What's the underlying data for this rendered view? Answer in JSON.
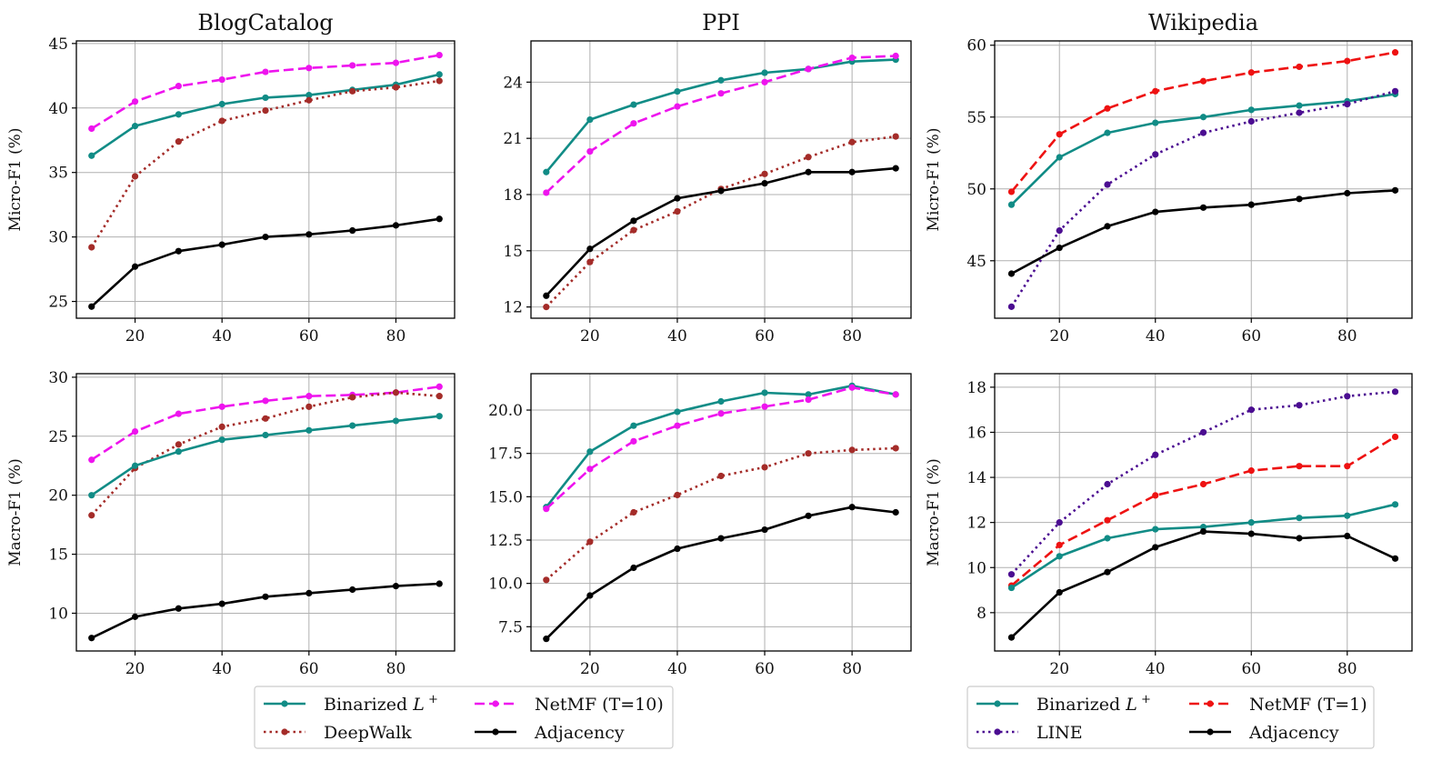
{
  "figure": {
    "legends": [
      {
        "entries": [
          {
            "label": "Binarized L",
            "sup": "+",
            "color": "#118c86",
            "dash": "solid"
          },
          {
            "label": "NetMF (T=10)",
            "color": "#ee14ee",
            "dash": "dashed"
          },
          {
            "label": "DeepWalk",
            "color": "#a42c29",
            "dash": "dotted"
          },
          {
            "label": "Adjacency",
            "color": "#000000",
            "dash": "solid"
          }
        ]
      },
      {
        "entries": [
          {
            "label": "Binarized L",
            "sup": "+",
            "color": "#118c86",
            "dash": "solid"
          },
          {
            "label": "NetMF (T=1)",
            "color": "#ee1212",
            "dash": "dashed"
          },
          {
            "label": "LINE",
            "color": "#4b0d91",
            "dash": "dotted"
          },
          {
            "label": "Adjacency",
            "color": "#000000",
            "dash": "solid"
          }
        ]
      }
    ]
  },
  "chart_data": [
    {
      "type": "line",
      "title": "BlogCatalog",
      "xlabel": "",
      "ylabel": "Micro-F1 (%)",
      "x": [
        10,
        20,
        30,
        40,
        50,
        60,
        70,
        80,
        90
      ],
      "xlim": [
        6.5,
        93.5
      ],
      "ylim": [
        23.7,
        45.2
      ],
      "xticks": [
        20,
        40,
        60,
        80
      ],
      "yticks": [
        25,
        30,
        35,
        40,
        45
      ],
      "grid": true,
      "series": [
        {
          "name": "NetMF (T=10)",
          "color": "#ee14ee",
          "dash": "dashed",
          "values": [
            38.4,
            40.5,
            41.7,
            42.2,
            42.8,
            43.1,
            43.3,
            43.5,
            44.1
          ]
        },
        {
          "name": "Binarized L+",
          "color": "#118c86",
          "dash": "solid",
          "values": [
            36.3,
            38.6,
            39.5,
            40.3,
            40.8,
            41.0,
            41.4,
            41.8,
            42.6
          ]
        },
        {
          "name": "DeepWalk",
          "color": "#a42c29",
          "dash": "dotted",
          "values": [
            29.2,
            34.7,
            37.4,
            39.0,
            39.8,
            40.6,
            41.3,
            41.6,
            42.1
          ]
        },
        {
          "name": "Adjacency",
          "color": "#000000",
          "dash": "solid",
          "values": [
            24.6,
            27.7,
            28.9,
            29.4,
            30.0,
            30.2,
            30.5,
            30.9,
            31.4
          ]
        }
      ]
    },
    {
      "type": "line",
      "title": "PPI",
      "xlabel": "",
      "ylabel": "",
      "x": [
        10,
        20,
        30,
        40,
        50,
        60,
        70,
        80,
        90
      ],
      "xlim": [
        6.5,
        93.5
      ],
      "ylim": [
        11.4,
        26.2
      ],
      "xticks": [
        20,
        40,
        60,
        80
      ],
      "yticks": [
        12,
        15,
        18,
        21,
        24
      ],
      "grid": true,
      "series": [
        {
          "name": "Binarized L+",
          "color": "#118c86",
          "dash": "solid",
          "values": [
            19.2,
            22.0,
            22.8,
            23.5,
            24.1,
            24.5,
            24.7,
            25.1,
            25.2
          ]
        },
        {
          "name": "NetMF (T=10)",
          "color": "#ee14ee",
          "dash": "dashed",
          "values": [
            18.1,
            20.3,
            21.8,
            22.7,
            23.4,
            24.0,
            24.7,
            25.3,
            25.4
          ]
        },
        {
          "name": "DeepWalk",
          "color": "#a42c29",
          "dash": "dotted",
          "values": [
            12.0,
            14.4,
            16.1,
            17.1,
            18.3,
            19.1,
            20.0,
            20.8,
            21.1
          ]
        },
        {
          "name": "Adjacency",
          "color": "#000000",
          "dash": "solid",
          "values": [
            12.6,
            15.1,
            16.6,
            17.8,
            18.2,
            18.6,
            19.2,
            19.2,
            19.4
          ]
        }
      ]
    },
    {
      "type": "line",
      "title": "Wikipedia",
      "xlabel": "",
      "ylabel": "Micro-F1 (%)",
      "x": [
        10,
        20,
        30,
        40,
        50,
        60,
        70,
        80,
        90
      ],
      "xlim": [
        6.5,
        93.5
      ],
      "ylim": [
        41.0,
        60.3
      ],
      "xticks": [
        20,
        40,
        60,
        80
      ],
      "yticks": [
        45,
        50,
        55,
        60
      ],
      "grid": true,
      "series": [
        {
          "name": "NetMF (T=1)",
          "color": "#ee1212",
          "dash": "dashed",
          "values": [
            49.8,
            53.8,
            55.6,
            56.8,
            57.5,
            58.1,
            58.5,
            58.9,
            59.5
          ]
        },
        {
          "name": "Binarized L+",
          "color": "#118c86",
          "dash": "solid",
          "values": [
            48.9,
            52.2,
            53.9,
            54.6,
            55.0,
            55.5,
            55.8,
            56.1,
            56.6
          ]
        },
        {
          "name": "LINE",
          "color": "#4b0d91",
          "dash": "dotted",
          "values": [
            41.8,
            47.1,
            50.3,
            52.4,
            53.9,
            54.7,
            55.3,
            55.9,
            56.8
          ]
        },
        {
          "name": "Adjacency",
          "color": "#000000",
          "dash": "solid",
          "values": [
            44.1,
            45.9,
            47.4,
            48.4,
            48.7,
            48.9,
            49.3,
            49.7,
            49.9
          ]
        }
      ]
    },
    {
      "type": "line",
      "title": "",
      "xlabel": "",
      "ylabel": "Macro-F1 (%)",
      "x": [
        10,
        20,
        30,
        40,
        50,
        60,
        70,
        80,
        90
      ],
      "xlim": [
        6.5,
        93.5
      ],
      "ylim": [
        6.8,
        30.3
      ],
      "xticks": [
        20,
        40,
        60,
        80
      ],
      "yticks": [
        10,
        15,
        20,
        25,
        30
      ],
      "grid": true,
      "series": [
        {
          "name": "NetMF (T=10)",
          "color": "#ee14ee",
          "dash": "dashed",
          "values": [
            23.0,
            25.4,
            26.9,
            27.5,
            28.0,
            28.4,
            28.5,
            28.7,
            29.2
          ]
        },
        {
          "name": "DeepWalk",
          "color": "#a42c29",
          "dash": "dotted",
          "values": [
            18.3,
            22.3,
            24.3,
            25.8,
            26.5,
            27.5,
            28.3,
            28.7,
            28.4
          ]
        },
        {
          "name": "Binarized L+",
          "color": "#118c86",
          "dash": "solid",
          "values": [
            20.0,
            22.5,
            23.7,
            24.7,
            25.1,
            25.5,
            25.9,
            26.3,
            26.7
          ]
        },
        {
          "name": "Adjacency",
          "color": "#000000",
          "dash": "solid",
          "values": [
            7.9,
            9.7,
            10.4,
            10.8,
            11.4,
            11.7,
            12.0,
            12.3,
            12.5
          ]
        }
      ]
    },
    {
      "type": "line",
      "title": "",
      "xlabel": "",
      "ylabel": "",
      "x": [
        10,
        20,
        30,
        40,
        50,
        60,
        70,
        80,
        90
      ],
      "xlim": [
        6.5,
        93.5
      ],
      "ylim": [
        6.1,
        22.1
      ],
      "xticks": [
        20,
        40,
        60,
        80
      ],
      "yticks": [
        7.5,
        10.0,
        12.5,
        15.0,
        17.5,
        20.0
      ],
      "ytick_decimals": 1,
      "grid": true,
      "series": [
        {
          "name": "Binarized L+",
          "color": "#118c86",
          "dash": "solid",
          "values": [
            14.4,
            17.6,
            19.1,
            19.9,
            20.5,
            21.0,
            20.9,
            21.4,
            20.9
          ]
        },
        {
          "name": "NetMF (T=10)",
          "color": "#ee14ee",
          "dash": "dashed",
          "values": [
            14.3,
            16.6,
            18.2,
            19.1,
            19.8,
            20.2,
            20.6,
            21.3,
            20.9
          ]
        },
        {
          "name": "DeepWalk",
          "color": "#a42c29",
          "dash": "dotted",
          "values": [
            10.2,
            12.4,
            14.1,
            15.1,
            16.2,
            16.7,
            17.5,
            17.7,
            17.8
          ]
        },
        {
          "name": "Adjacency",
          "color": "#000000",
          "dash": "solid",
          "values": [
            6.8,
            9.3,
            10.9,
            12.0,
            12.6,
            13.1,
            13.9,
            14.4,
            14.1
          ]
        }
      ]
    },
    {
      "type": "line",
      "title": "",
      "xlabel": "",
      "ylabel": "Macro-F1 (%)",
      "x": [
        10,
        20,
        30,
        40,
        50,
        60,
        70,
        80,
        90
      ],
      "xlim": [
        6.5,
        93.5
      ],
      "ylim": [
        6.3,
        18.6
      ],
      "xticks": [
        20,
        40,
        60,
        80
      ],
      "yticks": [
        8,
        10,
        12,
        14,
        16,
        18
      ],
      "grid": true,
      "series": [
        {
          "name": "LINE",
          "color": "#4b0d91",
          "dash": "dotted",
          "values": [
            9.7,
            12.0,
            13.7,
            15.0,
            16.0,
            17.0,
            17.2,
            17.6,
            17.8
          ]
        },
        {
          "name": "NetMF (T=1)",
          "color": "#ee1212",
          "dash": "dashed",
          "values": [
            9.2,
            11.0,
            12.1,
            13.2,
            13.7,
            14.3,
            14.5,
            14.5,
            15.8
          ]
        },
        {
          "name": "Binarized L+",
          "color": "#118c86",
          "dash": "solid",
          "values": [
            9.1,
            10.5,
            11.3,
            11.7,
            11.8,
            12.0,
            12.2,
            12.3,
            12.8
          ]
        },
        {
          "name": "Adjacency",
          "color": "#000000",
          "dash": "solid",
          "values": [
            6.9,
            8.9,
            9.8,
            10.9,
            11.6,
            11.5,
            11.3,
            11.4,
            10.4
          ]
        }
      ]
    }
  ]
}
